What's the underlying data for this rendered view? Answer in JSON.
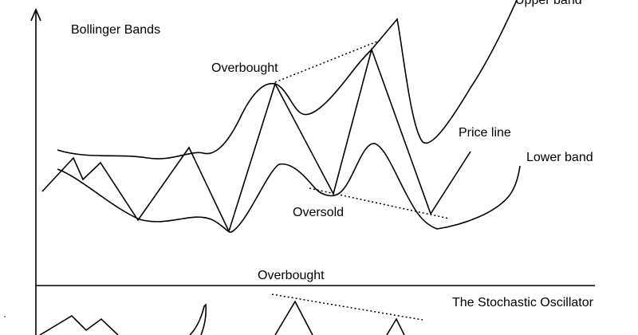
{
  "labels": {
    "title": "Bollinger Bands",
    "upper_band": "Upper band",
    "overbought_top": "Overbought",
    "price_line": "Price line",
    "lower_band": "Lower band",
    "oversold": "Oversold",
    "overbought_bottom": "Overbought",
    "stochastic": "The Stochastic Oscillator"
  },
  "colors": {
    "line": "#000000",
    "background": "#ffffff"
  }
}
